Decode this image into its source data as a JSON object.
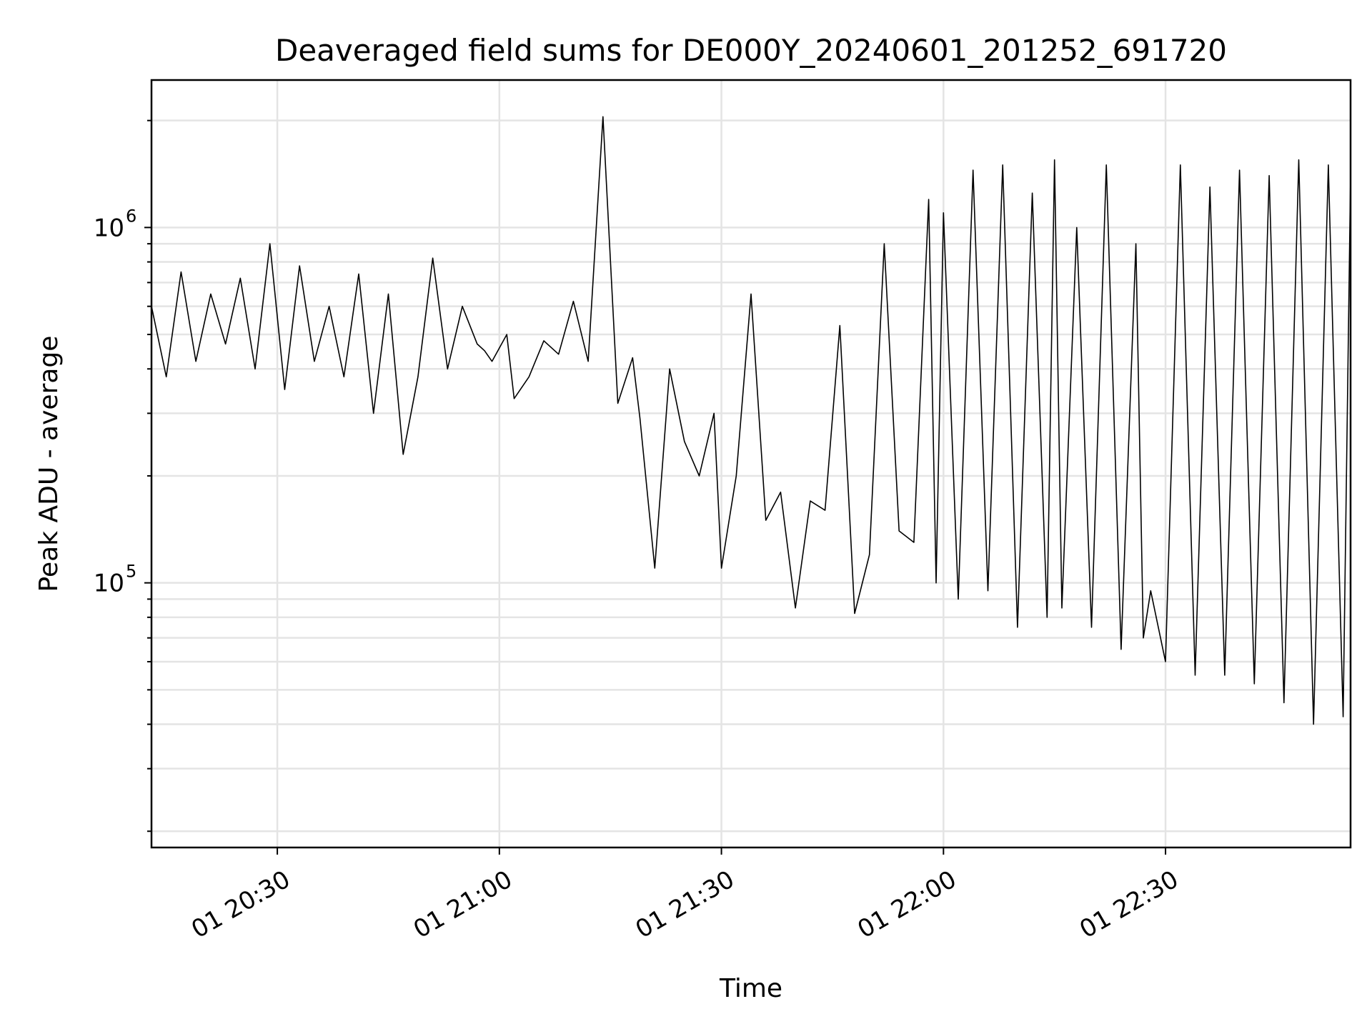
{
  "chart_data": {
    "type": "line",
    "title": "Deaveraged field sums for DE000Y_20240601_201252_691720",
    "xlabel": "Time",
    "ylabel": "Peak ADU - average",
    "yscale": "log",
    "grid": true,
    "xlim": [
      "2024-06-01T20:13:00",
      "2024-06-01T22:55:00"
    ],
    "ylim": [
      18000,
      2600000
    ],
    "x_ticks": [
      {
        "value": "2024-06-01T20:30:00",
        "label": "01 20:30"
      },
      {
        "value": "2024-06-01T21:00:00",
        "label": "01 21:00"
      },
      {
        "value": "2024-06-01T21:30:00",
        "label": "01 21:30"
      },
      {
        "value": "2024-06-01T22:00:00",
        "label": "01 22:00"
      },
      {
        "value": "2024-06-01T22:30:00",
        "label": "01 22:30"
      }
    ],
    "y_ticks": [
      {
        "value": 100000,
        "base": "10",
        "exp": "5"
      },
      {
        "value": 1000000,
        "base": "10",
        "exp": "6"
      }
    ],
    "x": [
      "2024-06-01T20:13:00",
      "2024-06-01T20:15:00",
      "2024-06-01T20:17:00",
      "2024-06-01T20:19:00",
      "2024-06-01T20:21:00",
      "2024-06-01T20:23:00",
      "2024-06-01T20:25:00",
      "2024-06-01T20:27:00",
      "2024-06-01T20:29:00",
      "2024-06-01T20:31:00",
      "2024-06-01T20:33:00",
      "2024-06-01T20:35:00",
      "2024-06-01T20:37:00",
      "2024-06-01T20:39:00",
      "2024-06-01T20:41:00",
      "2024-06-01T20:43:00",
      "2024-06-01T20:45:00",
      "2024-06-01T20:47:00",
      "2024-06-01T20:49:00",
      "2024-06-01T20:51:00",
      "2024-06-01T20:53:00",
      "2024-06-01T20:55:00",
      "2024-06-01T20:57:00",
      "2024-06-01T20:58:00",
      "2024-06-01T20:59:00",
      "2024-06-01T21:01:00",
      "2024-06-01T21:02:00",
      "2024-06-01T21:04:00",
      "2024-06-01T21:06:00",
      "2024-06-01T21:08:00",
      "2024-06-01T21:10:00",
      "2024-06-01T21:12:00",
      "2024-06-01T21:14:00",
      "2024-06-01T21:16:00",
      "2024-06-01T21:18:00",
      "2024-06-01T21:19:00",
      "2024-06-01T21:21:00",
      "2024-06-01T21:23:00",
      "2024-06-01T21:25:00",
      "2024-06-01T21:27:00",
      "2024-06-01T21:29:00",
      "2024-06-01T21:30:00",
      "2024-06-01T21:32:00",
      "2024-06-01T21:34:00",
      "2024-06-01T21:36:00",
      "2024-06-01T21:38:00",
      "2024-06-01T21:40:00",
      "2024-06-01T21:42:00",
      "2024-06-01T21:44:00",
      "2024-06-01T21:46:00",
      "2024-06-01T21:48:00",
      "2024-06-01T21:50:00",
      "2024-06-01T21:52:00",
      "2024-06-01T21:54:00",
      "2024-06-01T21:56:00",
      "2024-06-01T21:58:00",
      "2024-06-01T21:59:00",
      "2024-06-01T22:00:00",
      "2024-06-01T22:02:00",
      "2024-06-01T22:04:00",
      "2024-06-01T22:06:00",
      "2024-06-01T22:08:00",
      "2024-06-01T22:10:00",
      "2024-06-01T22:12:00",
      "2024-06-01T22:14:00",
      "2024-06-01T22:15:00",
      "2024-06-01T22:16:00",
      "2024-06-01T22:18:00",
      "2024-06-01T22:20:00",
      "2024-06-01T22:22:00",
      "2024-06-01T22:24:00",
      "2024-06-01T22:26:00",
      "2024-06-01T22:27:00",
      "2024-06-01T22:28:00",
      "2024-06-01T22:30:00",
      "2024-06-01T22:32:00",
      "2024-06-01T22:34:00",
      "2024-06-01T22:36:00",
      "2024-06-01T22:38:00",
      "2024-06-01T22:40:00",
      "2024-06-01T22:42:00",
      "2024-06-01T22:44:00",
      "2024-06-01T22:46:00",
      "2024-06-01T22:48:00",
      "2024-06-01T22:50:00",
      "2024-06-01T22:52:00",
      "2024-06-01T22:54:00",
      "2024-06-01T22:55:00"
    ],
    "series": [
      {
        "values": [
          600000,
          380000,
          750000,
          420000,
          650000,
          470000,
          720000,
          400000,
          900000,
          350000,
          780000,
          420000,
          600000,
          380000,
          740000,
          300000,
          650000,
          230000,
          380000,
          820000,
          400000,
          600000,
          470000,
          450000,
          420000,
          500000,
          330000,
          380000,
          480000,
          440000,
          620000,
          420000,
          2050000,
          320000,
          430000,
          290000,
          110000,
          400000,
          250000,
          200000,
          300000,
          110000,
          200000,
          650000,
          150000,
          180000,
          85000,
          170000,
          160000,
          530000,
          82000,
          120000,
          900000,
          140000,
          130000,
          1200000,
          100000,
          1100000,
          90000,
          1450000,
          95000,
          1500000,
          75000,
          1250000,
          80000,
          1550000,
          85000,
          1000000,
          75000,
          1500000,
          65000,
          900000,
          70000,
          95000,
          60000,
          1500000,
          55000,
          1300000,
          55000,
          1450000,
          52000,
          1400000,
          46000,
          1550000,
          40000,
          1500000,
          42000,
          1400000
        ]
      }
    ]
  }
}
